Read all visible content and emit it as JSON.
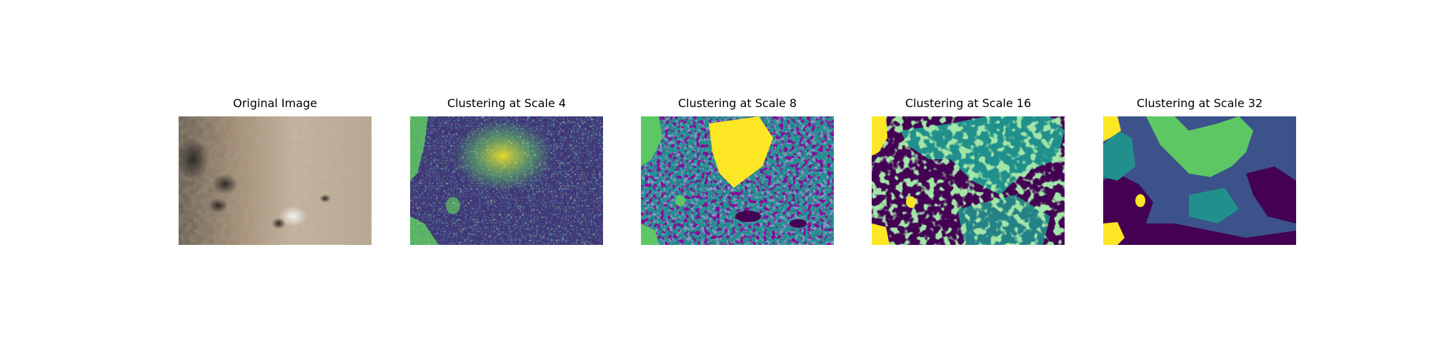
{
  "figure": {
    "panels": [
      {
        "title": "Original Image"
      },
      {
        "title": "Clustering at Scale 4"
      },
      {
        "title": "Clustering at Scale 8"
      },
      {
        "title": "Clustering at Scale 16"
      },
      {
        "title": "Clustering at Scale 32"
      }
    ]
  },
  "colors": {
    "cluster_purple": "#440154",
    "cluster_blue": "#3b528b",
    "cluster_teal": "#21908d",
    "cluster_green": "#5dc863",
    "cluster_yellow": "#fde725",
    "skin_base": "#b9a68f",
    "skin_light": "#d2c3ad",
    "skin_dark": "#5d554a"
  }
}
